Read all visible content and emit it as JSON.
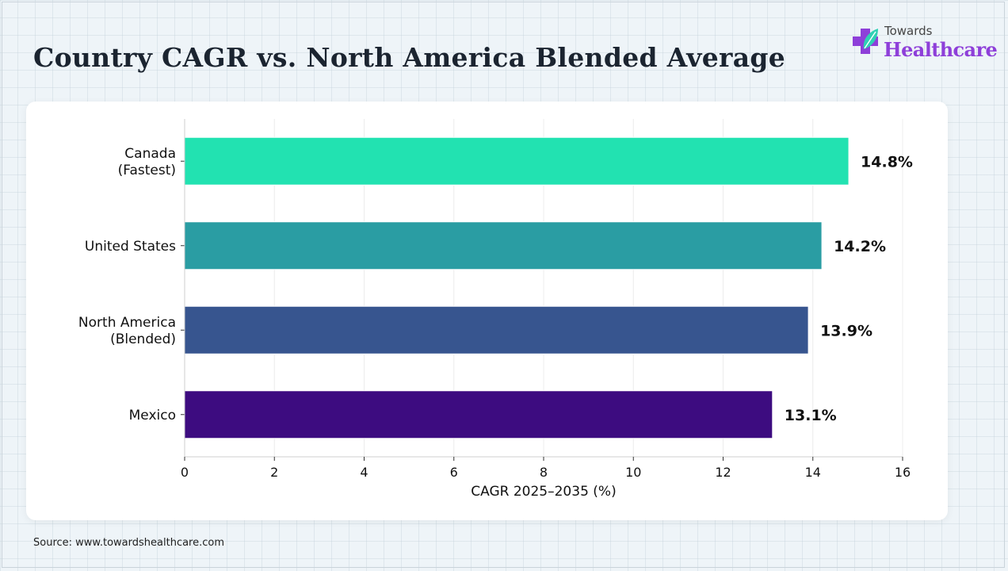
{
  "title": "Country CAGR vs. North America Blended Average",
  "logo": {
    "top_text": "Towards",
    "main_text": "Healthcare",
    "colors": {
      "purple": "#8e3fd9",
      "teal": "#2fd1b4"
    }
  },
  "source": "Source: www.towardshealthcare.com",
  "chart_data": {
    "type": "bar",
    "orientation": "horizontal",
    "categories": [
      [
        "Canada",
        "(Fastest)"
      ],
      [
        "United States"
      ],
      [
        "North America",
        "(Blended)"
      ],
      [
        "Mexico"
      ]
    ],
    "values": [
      14.8,
      14.2,
      13.9,
      13.1
    ],
    "value_labels": [
      "14.8%",
      "14.2%",
      "13.9%",
      "13.1%"
    ],
    "colors": [
      "#22e2b1",
      "#2a9da3",
      "#37558f",
      "#3d0c80"
    ],
    "xlabel": "CAGR 2025–2035 (%)",
    "ylabel": "",
    "xlim": [
      0,
      16
    ],
    "xticks": [
      0,
      2,
      4,
      6,
      8,
      10,
      12,
      14,
      16
    ],
    "grid": true
  }
}
